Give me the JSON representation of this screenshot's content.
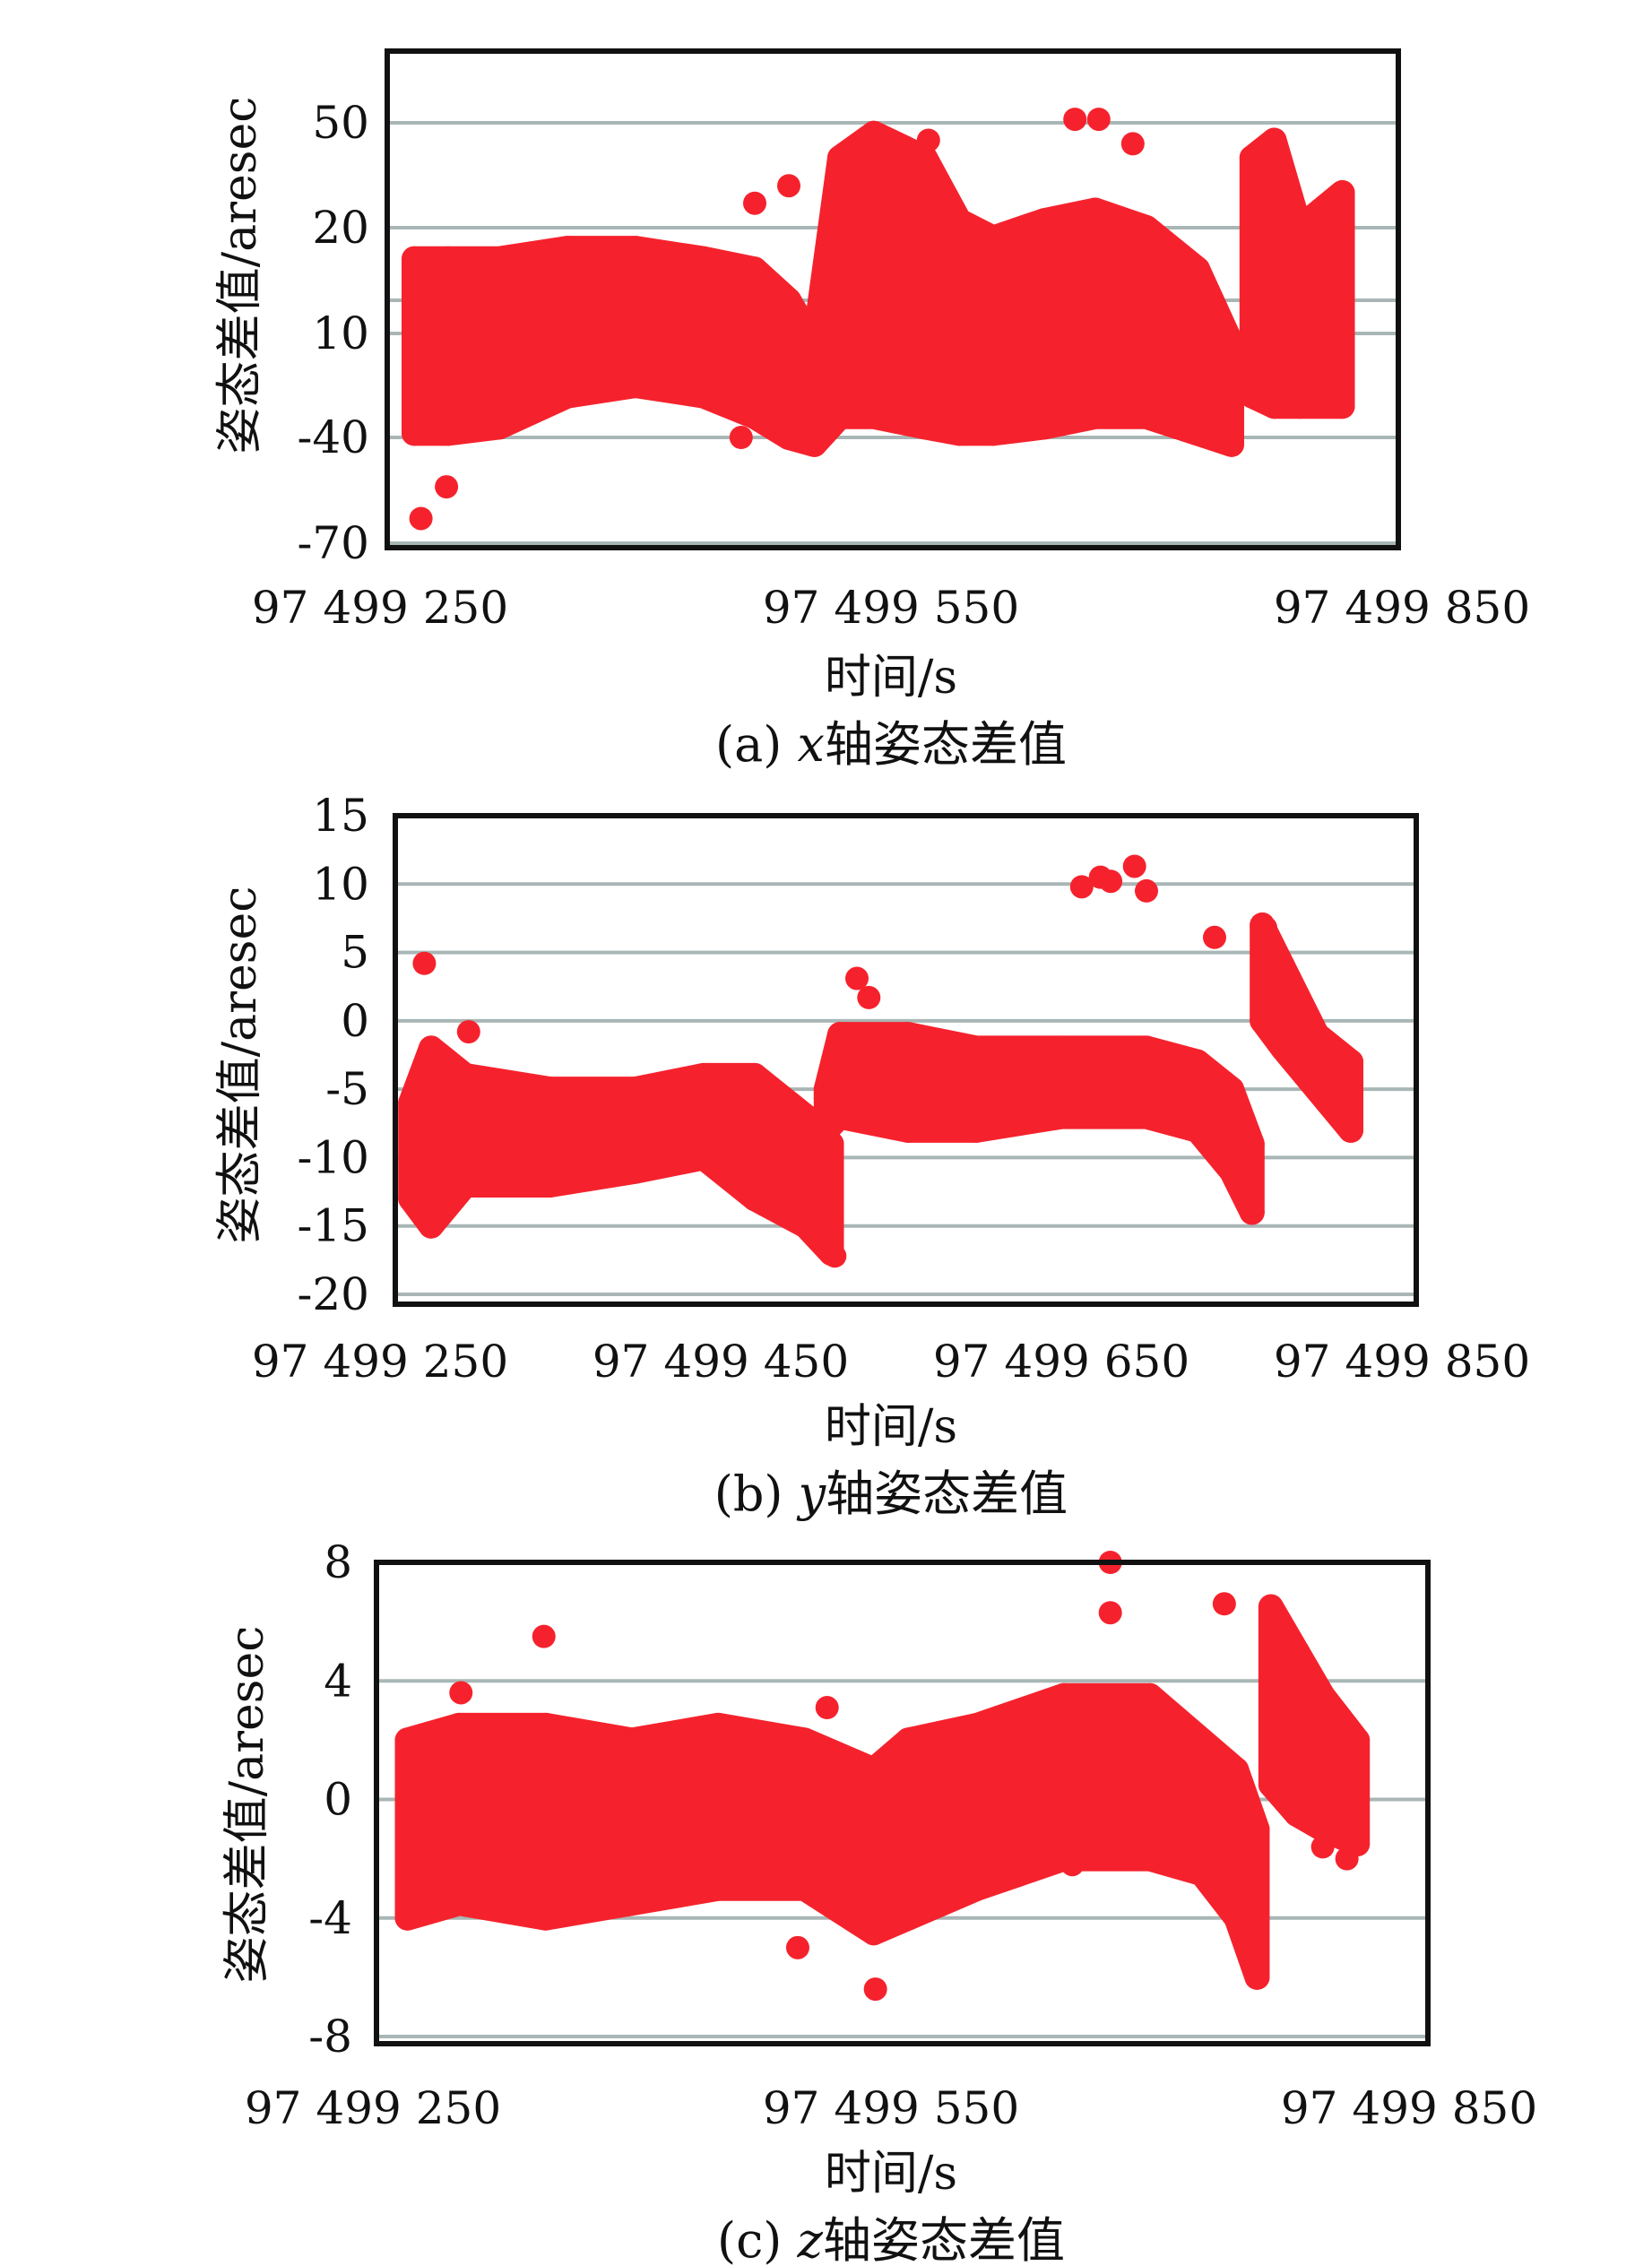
{
  "colors": {
    "points": "#f5222d",
    "grid": "#a9b6b6",
    "frame": "#111111"
  },
  "chart_data": [
    {
      "type": "scatter",
      "caption": {
        "prefix": "(a) ",
        "var": "x",
        "suffix": "轴姿态差值"
      },
      "xlabel": "时间/s",
      "ylabel": "姿态差值/aresec",
      "x_ticks": [
        {
          "value": 250,
          "label": "97 499 250"
        },
        {
          "value": 550,
          "label": "97 499 550"
        },
        {
          "value": 850,
          "label": "97 499 850"
        }
      ],
      "x_offset": 97499000,
      "y_ticks": [
        {
          "value": 50,
          "label": "50"
        },
        {
          "value": 20,
          "label": "20"
        },
        {
          "value": 10,
          "label": "10"
        },
        {
          "value": -40,
          "label": "-40"
        },
        {
          "value": -70,
          "label": "-70"
        }
      ],
      "extra_gridlines": [
        13
      ],
      "grid": true,
      "density_band": [
        [
          270,
          -38,
          17
        ],
        [
          290,
          -38,
          17
        ],
        [
          320,
          -35,
          17
        ],
        [
          360,
          -20,
          18
        ],
        [
          400,
          -15,
          18
        ],
        [
          440,
          -20,
          17
        ],
        [
          470,
          -30,
          16
        ],
        [
          490,
          -40,
          13
        ],
        [
          505,
          -42,
          5
        ],
        [
          520,
          -30,
          40
        ],
        [
          540,
          -30,
          47
        ],
        [
          570,
          -35,
          40
        ],
        [
          590,
          -38,
          22
        ],
        [
          610,
          -38,
          19
        ],
        [
          640,
          -35,
          22
        ],
        [
          670,
          -30,
          25
        ],
        [
          700,
          -30,
          20
        ],
        [
          730,
          -38,
          16
        ],
        [
          750,
          -42,
          5
        ],
        null,
        [
          762,
          -20,
          40
        ],
        [
          775,
          -25,
          45
        ],
        [
          790,
          -25,
          20
        ],
        [
          815,
          -25,
          30
        ]
      ],
      "outliers": [
        [
          274,
          -63
        ],
        [
          289,
          -54
        ],
        [
          490,
          32
        ],
        [
          470,
          27
        ],
        [
          658,
          51
        ],
        [
          672,
          51
        ],
        [
          692,
          44
        ],
        [
          572,
          45
        ],
        [
          462,
          -40
        ]
      ]
    },
    {
      "type": "scatter",
      "caption": {
        "prefix": "(b) ",
        "var": "y",
        "suffix": "轴姿态差值"
      },
      "xlabel": "时间/s",
      "ylabel": "姿态差值/aresec",
      "x_ticks": [
        {
          "value": 250,
          "label": "97 499 250"
        },
        {
          "value": 450,
          "label": "97 499 450"
        },
        {
          "value": 650,
          "label": "97 499 650"
        },
        {
          "value": 850,
          "label": "97 499 850"
        }
      ],
      "x_offset": 97499000,
      "y_ticks": [
        {
          "value": 15,
          "label": "15"
        },
        {
          "value": 10,
          "label": "10"
        },
        {
          "value": 5,
          "label": "5"
        },
        {
          "value": 0,
          "label": "0"
        },
        {
          "value": -5,
          "label": "-5"
        },
        {
          "value": -10,
          "label": "-10"
        },
        {
          "value": -15,
          "label": "-15"
        },
        {
          "value": -20,
          "label": "-20"
        }
      ],
      "extra_gridlines": [],
      "grid": true,
      "density_band": [
        [
          268,
          -13,
          -6
        ],
        [
          280,
          -15,
          -2
        ],
        [
          300,
          -12,
          -4
        ],
        [
          350,
          -12,
          -5
        ],
        [
          400,
          -11,
          -5
        ],
        [
          440,
          -10,
          -4
        ],
        [
          470,
          -13,
          -4
        ],
        [
          500,
          -15,
          -7
        ],
        [
          515,
          -17,
          -9
        ],
        null,
        [
          512,
          -8,
          -5
        ],
        [
          520,
          -7,
          -1
        ],
        [
          560,
          -8,
          -1
        ],
        [
          600,
          -8,
          -2
        ],
        [
          650,
          -7,
          -2
        ],
        [
          700,
          -7,
          -2
        ],
        [
          730,
          -8,
          -3
        ],
        [
          750,
          -11,
          -5
        ],
        [
          762,
          -14,
          -9
        ],
        null,
        [
          768,
          0,
          7
        ],
        [
          780,
          -2,
          4
        ],
        [
          800,
          -5,
          -1
        ],
        [
          820,
          -8,
          -3
        ]
      ],
      "outliers": [
        [
          276,
          4.2
        ],
        [
          530,
          3.1
        ],
        [
          537,
          1.7
        ],
        [
          662,
          9.8
        ],
        [
          673,
          10.5
        ],
        [
          679,
          10.2
        ],
        [
          693,
          11.3
        ],
        [
          700,
          9.5
        ],
        [
          740,
          6.1
        ],
        [
          770,
          6.8
        ],
        [
          517,
          -17.2
        ],
        [
          302,
          -0.8
        ]
      ]
    },
    {
      "type": "scatter",
      "caption": {
        "prefix": "(c) ",
        "var": "z",
        "suffix": "轴姿态差值"
      },
      "xlabel": "时间/s",
      "ylabel": "姿态差值/aresec",
      "x_ticks": [
        {
          "value": 250,
          "label": "97 499 250"
        },
        {
          "value": 550,
          "label": "97 499 550"
        },
        {
          "value": 850,
          "label": "97 499 850"
        }
      ],
      "x_offset": 97499000,
      "y_ticks": [
        {
          "value": 8,
          "label": "8"
        },
        {
          "value": 4,
          "label": "4"
        },
        {
          "value": 0,
          "label": "0"
        },
        {
          "value": -4,
          "label": "-4"
        },
        {
          "value": -8,
          "label": "-8"
        }
      ],
      "extra_gridlines": [],
      "grid": true,
      "density_band": [
        [
          270,
          -4,
          2
        ],
        [
          300,
          -3.5,
          2.5
        ],
        [
          350,
          -4,
          2.5
        ],
        [
          400,
          -3.5,
          2
        ],
        [
          450,
          -3,
          2.5
        ],
        [
          500,
          -3,
          2
        ],
        [
          540,
          -4.5,
          1
        ],
        [
          560,
          -4,
          2
        ],
        [
          600,
          -3,
          2.5
        ],
        [
          650,
          -2,
          3.5
        ],
        [
          700,
          -2,
          3.5
        ],
        [
          730,
          -2.5,
          2
        ],
        [
          750,
          -4,
          1
        ],
        [
          762,
          -6,
          -1
        ],
        null,
        [
          770,
          0.5,
          6.5
        ],
        [
          785,
          -0.5,
          5
        ],
        [
          800,
          -1,
          3.5
        ],
        [
          820,
          -1.5,
          2
        ]
      ],
      "outliers": [
        [
          349,
          5.5
        ],
        [
          513,
          3.1
        ],
        [
          496,
          -5
        ],
        [
          541,
          -6.4
        ],
        [
          677,
          8
        ],
        [
          677,
          6.3
        ],
        [
          743,
          6.6
        ],
        [
          655,
          -2.2
        ],
        [
          800,
          -1.6
        ],
        [
          814,
          -2
        ],
        [
          301,
          3.6
        ],
        [
          762,
          -6
        ]
      ]
    }
  ]
}
